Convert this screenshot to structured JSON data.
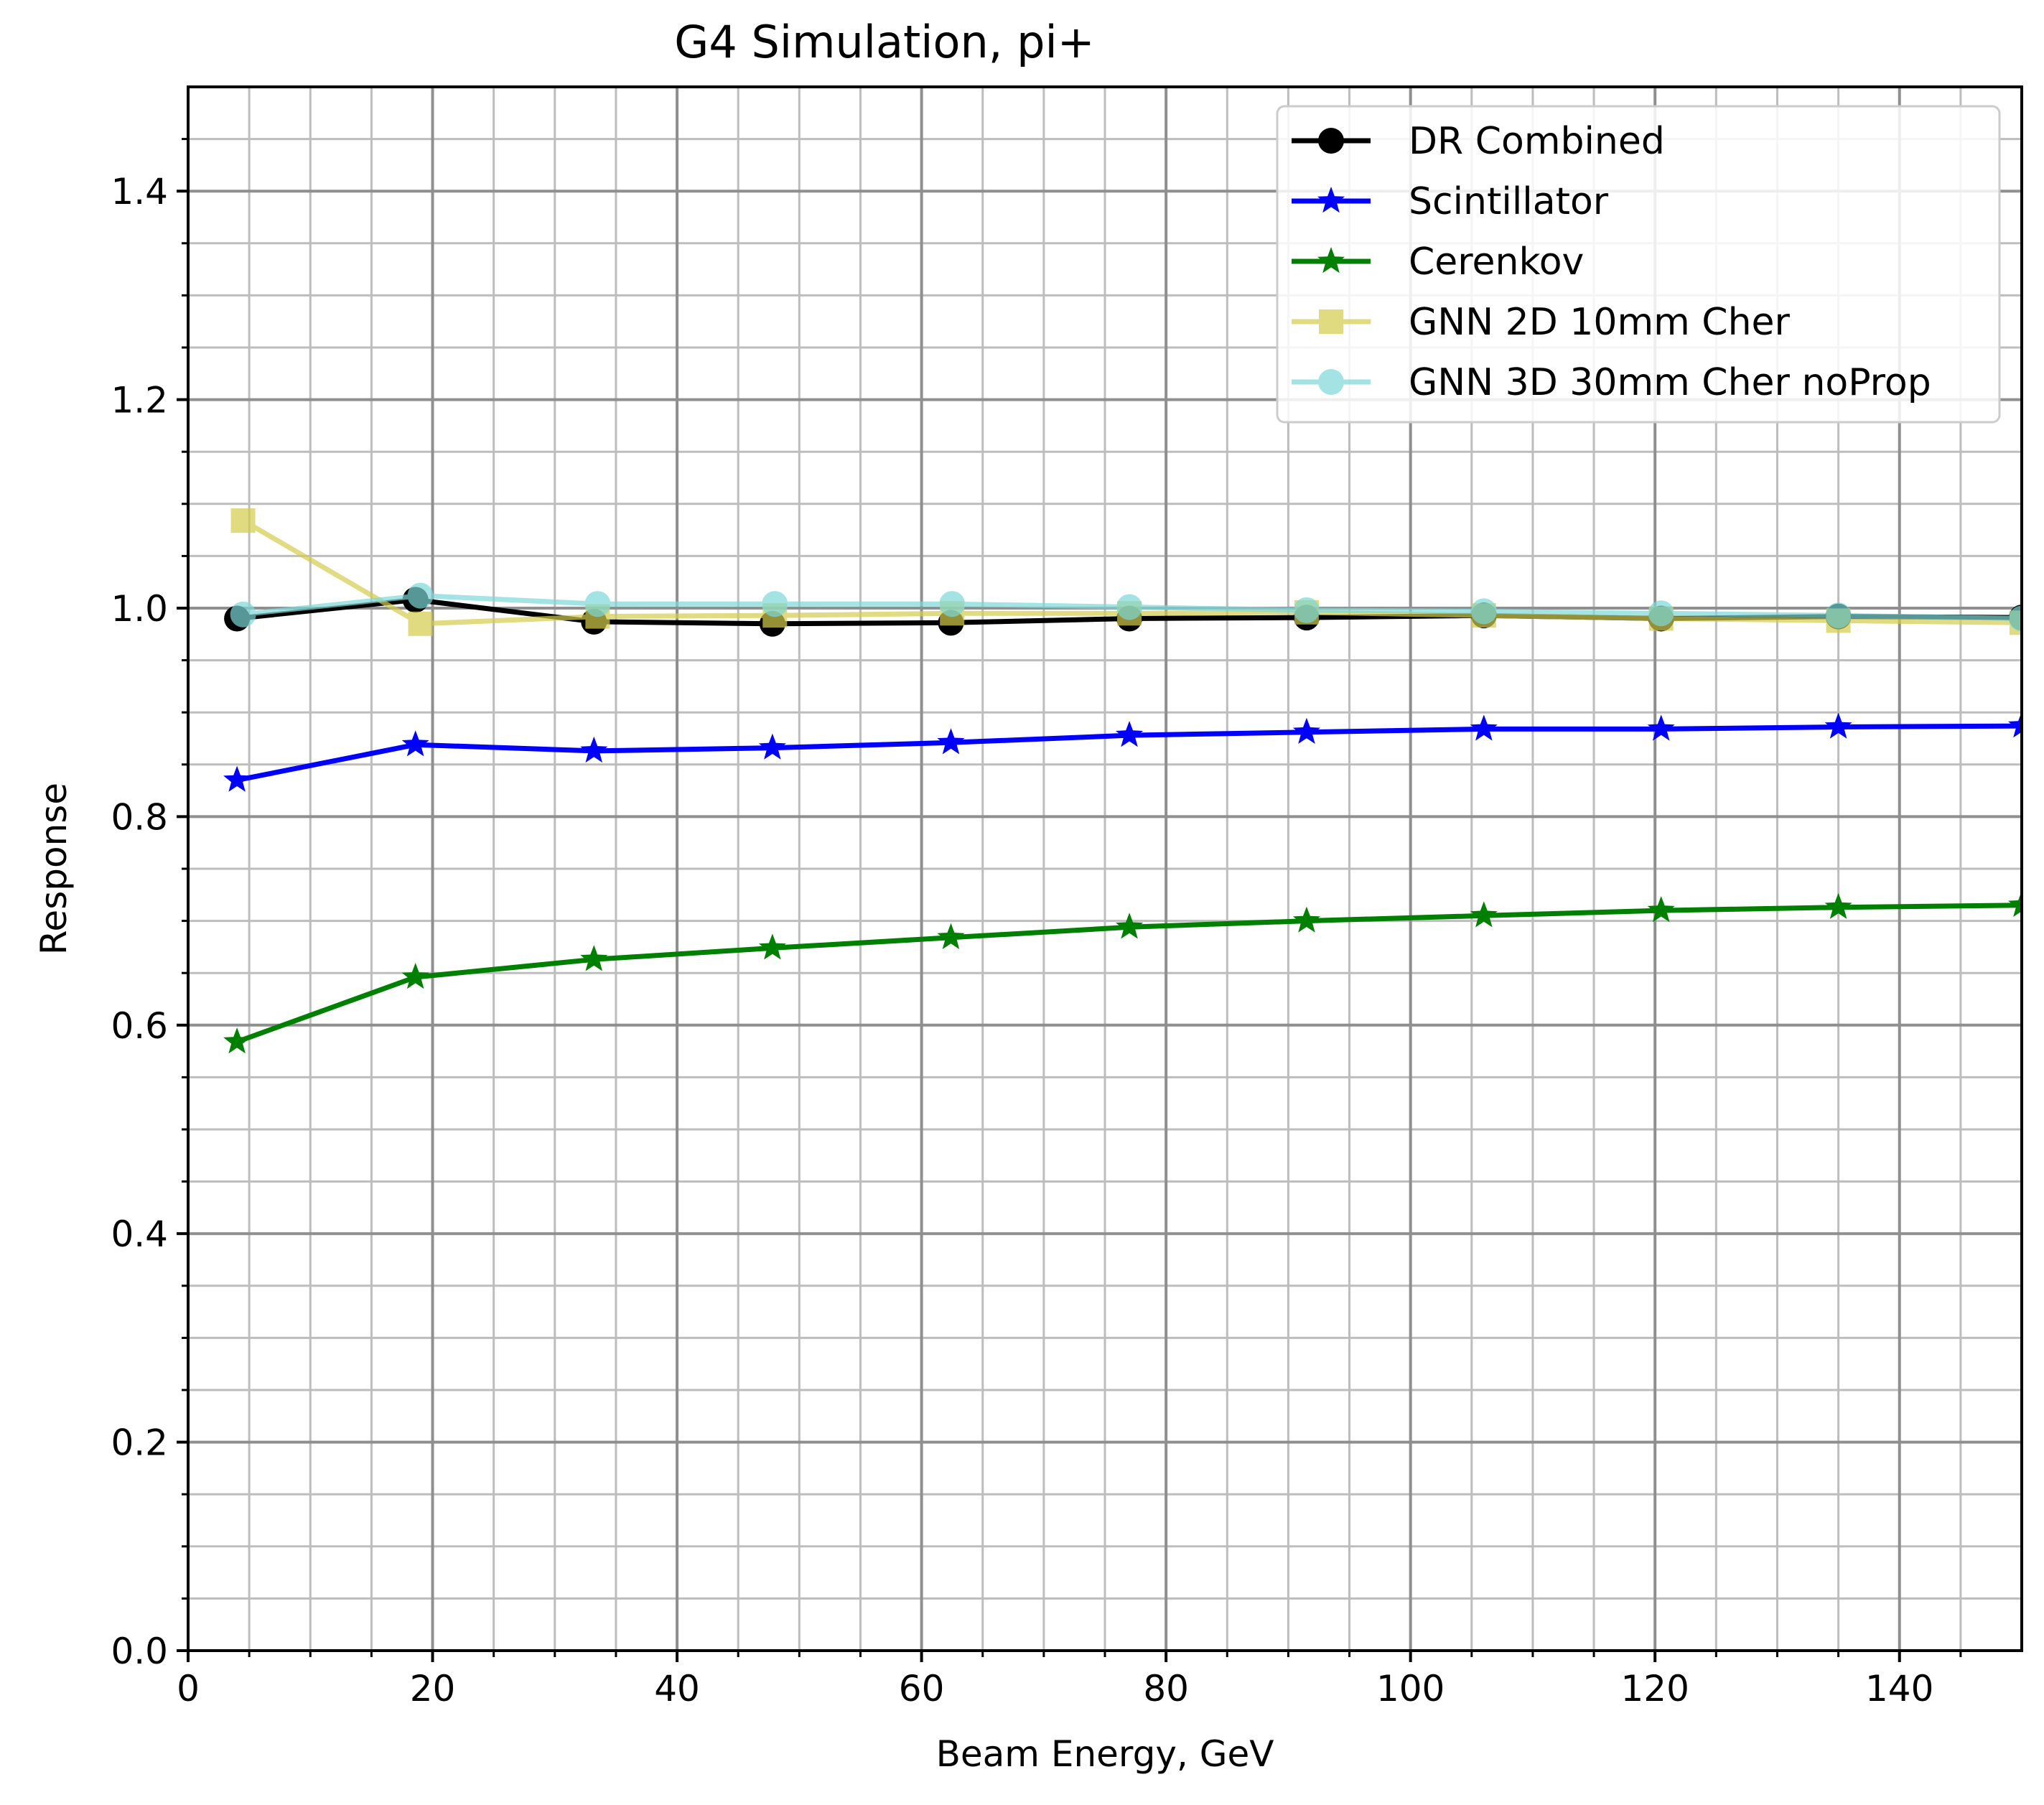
{
  "chart_data": {
    "type": "line",
    "title": "G4 Simulation, pi+",
    "xlabel": "Beam Energy, GeV",
    "ylabel": "Response",
    "xlim": [
      0,
      150
    ],
    "ylim": [
      0,
      1.5
    ],
    "xticks": [
      0,
      20,
      40,
      60,
      80,
      100,
      120,
      140
    ],
    "yticks": [
      0.0,
      0.2,
      0.4,
      0.6,
      0.8,
      1.0,
      1.2,
      1.4
    ],
    "xtick_labels": [
      "0",
      "20",
      "40",
      "60",
      "80",
      "100",
      "120",
      "140"
    ],
    "ytick_labels": [
      "0.0",
      "0.2",
      "0.4",
      "0.6",
      "0.8",
      "1.0",
      "1.2",
      "1.4"
    ],
    "grid": true,
    "minor_grid": true,
    "legend_position": "top-right",
    "series": [
      {
        "name": "DR Combined",
        "color": "#000000",
        "marker": "circle",
        "alpha": 1.0,
        "x": [
          4,
          18.6,
          33.2,
          47.8,
          62.4,
          77,
          91.5,
          106,
          120.5,
          135,
          150
        ],
        "y": [
          0.99,
          1.008,
          0.987,
          0.985,
          0.986,
          0.99,
          0.991,
          0.993,
          0.99,
          0.992,
          0.991
        ]
      },
      {
        "name": "Scintillator",
        "color": "#0000ff",
        "marker": "star",
        "alpha": 1.0,
        "x": [
          4,
          18.6,
          33.2,
          47.8,
          62.4,
          77,
          91.5,
          106,
          120.5,
          135,
          150
        ],
        "y": [
          0.835,
          0.869,
          0.863,
          0.866,
          0.871,
          0.878,
          0.881,
          0.884,
          0.884,
          0.886,
          0.887
        ]
      },
      {
        "name": "Cerenkov",
        "color": "#008000",
        "marker": "star",
        "alpha": 1.0,
        "x": [
          4,
          18.6,
          33.2,
          47.8,
          62.4,
          77,
          91.5,
          106,
          120.5,
          135,
          150
        ],
        "y": [
          0.584,
          0.646,
          0.663,
          0.674,
          0.684,
          0.694,
          0.7,
          0.705,
          0.71,
          0.713,
          0.715
        ]
      },
      {
        "name": "GNN 2D 10mm Cher",
        "color": "#d4cc4c",
        "marker": "square",
        "alpha": 0.7,
        "x": [
          4.5,
          19,
          33.5,
          48,
          62.5,
          77,
          91.5,
          106,
          120.5,
          135,
          150
        ],
        "y": [
          1.084,
          0.985,
          0.992,
          0.993,
          0.995,
          0.995,
          0.996,
          0.993,
          0.99,
          0.988,
          0.986
        ]
      },
      {
        "name": "GNN 3D 30mm Cher noProp",
        "color": "#7dd8d8",
        "marker": "circle",
        "alpha": 0.7,
        "x": [
          4.5,
          19,
          33.5,
          48,
          62.5,
          77,
          91.5,
          106,
          120.5,
          135,
          150
        ],
        "y": [
          0.994,
          1.012,
          1.004,
          1.004,
          1.004,
          1.001,
          0.998,
          0.997,
          0.995,
          0.993,
          0.99
        ]
      }
    ]
  }
}
